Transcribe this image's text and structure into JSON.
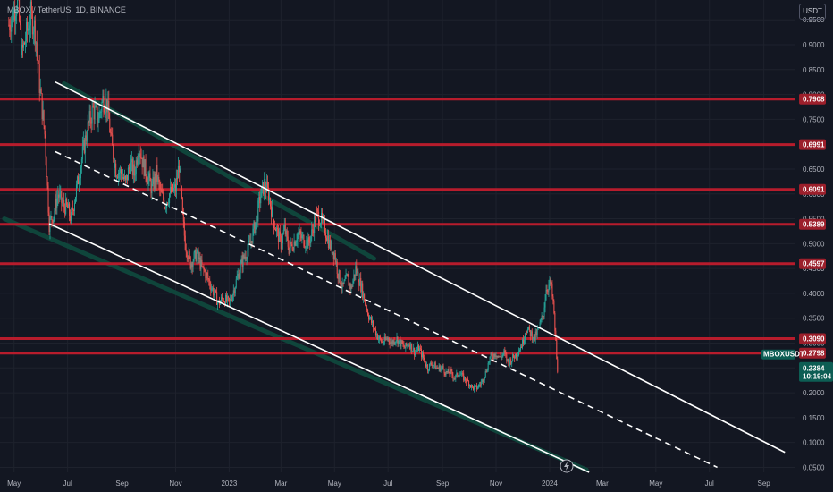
{
  "header": {
    "symbol_title": "MBOX / TetherUS, 1D, BINANCE",
    "currency": "USDT"
  },
  "colors": {
    "background": "#131722",
    "up": "#26a69a",
    "down": "#ef5350",
    "level_line": "#b71c2c",
    "level_label_bg": "#9c1f2b",
    "channel": "#ffffff",
    "channel_shadow": "#0f4a3e",
    "current_price_bg": "#0d5e54"
  },
  "chart_data": {
    "type": "candlestick",
    "title": "MBOX / TetherUS, 1D, BINANCE",
    "y_axis": {
      "ticks": [
        0.05,
        0.1,
        0.15,
        0.2,
        0.25,
        0.3,
        0.35,
        0.4,
        0.45,
        0.5,
        0.55,
        0.6,
        0.65,
        0.7,
        0.75,
        0.8,
        0.85,
        0.9,
        0.95
      ],
      "tick_labels": [
        "0.0500",
        "0.1000",
        "0.1500",
        "0.2000",
        "0.2500",
        "0.3000",
        "0.3500",
        "0.4000",
        "0.4500",
        "0.5000",
        "0.5500",
        "0.6000",
        "0.6500",
        "0.7000",
        "0.7500",
        "0.8000",
        "0.8500",
        "0.9000",
        "0.9500"
      ],
      "range": [
        0.04,
        0.99
      ],
      "position": "right"
    },
    "x_axis": {
      "labels": [
        "May",
        "Jul",
        "Sep",
        "Nov",
        "2023",
        "Mar",
        "May",
        "Jul",
        "Sep",
        "Nov",
        "2024",
        "Mar",
        "May",
        "Jul",
        "Sep"
      ],
      "dates": [
        "2022-05-01",
        "2022-07-01",
        "2022-09-01",
        "2022-11-01",
        "2023-01-01",
        "2023-03-01",
        "2023-05-01",
        "2023-07-01",
        "2023-09-01",
        "2023-11-01",
        "2024-01-01",
        "2024-03-01",
        "2024-05-01",
        "2024-07-01",
        "2024-09-01"
      ],
      "range": [
        "2022-04-15",
        "2024-10-07"
      ]
    },
    "horizontal_levels": [
      {
        "value": 0.7908,
        "label": "0.7908"
      },
      {
        "value": 0.6991,
        "label": "0.6991"
      },
      {
        "value": 0.6091,
        "label": "0.6091"
      },
      {
        "value": 0.5389,
        "label": "0.5389"
      },
      {
        "value": 0.4597,
        "label": "0.4597"
      },
      {
        "value": 0.309,
        "label": "0.3090"
      },
      {
        "value": 0.2798,
        "label": "0.2798"
      }
    ],
    "current_price": {
      "symbol": "MBOXUSDT",
      "value": "0.2384",
      "countdown": "10:19:04",
      "y": 0.2384
    },
    "channel_lines": [
      {
        "kind": "upper",
        "style": "solid",
        "start": {
          "date": "2022-06-17",
          "price": 0.825
        },
        "end": {
          "date": "2024-09-25",
          "price": 0.08
        }
      },
      {
        "kind": "middle",
        "style": "dashed",
        "start": {
          "date": "2022-06-17",
          "price": 0.685
        },
        "end": {
          "date": "2024-07-10",
          "price": 0.05
        }
      },
      {
        "kind": "lower",
        "style": "solid",
        "start": {
          "date": "2022-06-10",
          "price": 0.54
        },
        "end": {
          "date": "2024-02-15",
          "price": 0.04
        }
      }
    ],
    "channel_shadows": [
      {
        "start": {
          "date": "2022-06-27",
          "price": 0.822
        },
        "end": {
          "date": "2023-06-15",
          "price": 0.47
        }
      },
      {
        "start": {
          "date": "2022-04-20",
          "price": 0.55
        },
        "end": {
          "date": "2024-02-12",
          "price": 0.045
        }
      }
    ],
    "price_path": [
      [
        "2022-04-25",
        0.94
      ],
      [
        "2022-05-05",
        0.99
      ],
      [
        "2022-05-10",
        0.88
      ],
      [
        "2022-05-20",
        0.96
      ],
      [
        "2022-05-25",
        0.93
      ],
      [
        "2022-05-30",
        0.82
      ],
      [
        "2022-06-05",
        0.72
      ],
      [
        "2022-06-10",
        0.54
      ],
      [
        "2022-06-15",
        0.56
      ],
      [
        "2022-06-20",
        0.6
      ],
      [
        "2022-06-25",
        0.58
      ],
      [
        "2022-07-01",
        0.57
      ],
      [
        "2022-07-05",
        0.55
      ],
      [
        "2022-07-10",
        0.6
      ],
      [
        "2022-07-15",
        0.65
      ],
      [
        "2022-07-20",
        0.7
      ],
      [
        "2022-07-25",
        0.74
      ],
      [
        "2022-07-30",
        0.77
      ],
      [
        "2022-08-05",
        0.75
      ],
      [
        "2022-08-10",
        0.79
      ],
      [
        "2022-08-15",
        0.78
      ],
      [
        "2022-08-20",
        0.7
      ],
      [
        "2022-08-25",
        0.65
      ],
      [
        "2022-09-01",
        0.64
      ],
      [
        "2022-09-05",
        0.62
      ],
      [
        "2022-09-10",
        0.66
      ],
      [
        "2022-09-15",
        0.64
      ],
      [
        "2022-09-20",
        0.7
      ],
      [
        "2022-09-25",
        0.66
      ],
      [
        "2022-10-01",
        0.63
      ],
      [
        "2022-10-05",
        0.61
      ],
      [
        "2022-10-10",
        0.64
      ],
      [
        "2022-10-15",
        0.6
      ],
      [
        "2022-10-20",
        0.58
      ],
      [
        "2022-10-25",
        0.6
      ],
      [
        "2022-11-01",
        0.61
      ],
      [
        "2022-11-05",
        0.66
      ],
      [
        "2022-11-09",
        0.55
      ],
      [
        "2022-11-12",
        0.5
      ],
      [
        "2022-11-18",
        0.46
      ],
      [
        "2022-11-25",
        0.48
      ],
      [
        "2022-12-01",
        0.45
      ],
      [
        "2022-12-05",
        0.44
      ],
      [
        "2022-12-10",
        0.42
      ],
      [
        "2022-12-15",
        0.4
      ],
      [
        "2022-12-20",
        0.38
      ],
      [
        "2022-12-25",
        0.39
      ],
      [
        "2023-01-01",
        0.38
      ],
      [
        "2023-01-05",
        0.4
      ],
      [
        "2023-01-10",
        0.43
      ],
      [
        "2023-01-15",
        0.46
      ],
      [
        "2023-01-20",
        0.48
      ],
      [
        "2023-01-25",
        0.5
      ],
      [
        "2023-02-01",
        0.55
      ],
      [
        "2023-02-05",
        0.59
      ],
      [
        "2023-02-10",
        0.62
      ],
      [
        "2023-02-15",
        0.6
      ],
      [
        "2023-02-20",
        0.55
      ],
      [
        "2023-02-25",
        0.52
      ],
      [
        "2023-03-01",
        0.5
      ],
      [
        "2023-03-05",
        0.53
      ],
      [
        "2023-03-10",
        0.49
      ],
      [
        "2023-03-15",
        0.5
      ],
      [
        "2023-03-20",
        0.52
      ],
      [
        "2023-03-25",
        0.51
      ],
      [
        "2023-04-01",
        0.5
      ],
      [
        "2023-04-05",
        0.52
      ],
      [
        "2023-04-10",
        0.56
      ],
      [
        "2023-04-15",
        0.55
      ],
      [
        "2023-04-20",
        0.53
      ],
      [
        "2023-04-25",
        0.5
      ],
      [
        "2023-05-01",
        0.48
      ],
      [
        "2023-05-05",
        0.44
      ],
      [
        "2023-05-10",
        0.41
      ],
      [
        "2023-05-15",
        0.43
      ],
      [
        "2023-05-20",
        0.41
      ],
      [
        "2023-05-25",
        0.45
      ],
      [
        "2023-06-01",
        0.41
      ],
      [
        "2023-06-05",
        0.38
      ],
      [
        "2023-06-10",
        0.35
      ],
      [
        "2023-06-15",
        0.33
      ],
      [
        "2023-06-20",
        0.31
      ],
      [
        "2023-06-25",
        0.3
      ],
      [
        "2023-07-01",
        0.31
      ],
      [
        "2023-07-05",
        0.3
      ],
      [
        "2023-07-10",
        0.31
      ],
      [
        "2023-07-15",
        0.3
      ],
      [
        "2023-07-20",
        0.29
      ],
      [
        "2023-07-25",
        0.3
      ],
      [
        "2023-08-01",
        0.28
      ],
      [
        "2023-08-05",
        0.29
      ],
      [
        "2023-08-10",
        0.27
      ],
      [
        "2023-08-15",
        0.25
      ],
      [
        "2023-08-20",
        0.26
      ],
      [
        "2023-08-25",
        0.25
      ],
      [
        "2023-09-01",
        0.25
      ],
      [
        "2023-09-05",
        0.24
      ],
      [
        "2023-09-10",
        0.24
      ],
      [
        "2023-09-15",
        0.23
      ],
      [
        "2023-09-20",
        0.24
      ],
      [
        "2023-09-25",
        0.23
      ],
      [
        "2023-10-01",
        0.22
      ],
      [
        "2023-10-05",
        0.21
      ],
      [
        "2023-10-10",
        0.21
      ],
      [
        "2023-10-15",
        0.22
      ],
      [
        "2023-10-20",
        0.24
      ],
      [
        "2023-10-25",
        0.27
      ],
      [
        "2023-11-01",
        0.28
      ],
      [
        "2023-11-05",
        0.27
      ],
      [
        "2023-11-10",
        0.28
      ],
      [
        "2023-11-15",
        0.26
      ],
      [
        "2023-11-20",
        0.27
      ],
      [
        "2023-11-25",
        0.28
      ],
      [
        "2023-12-01",
        0.3
      ],
      [
        "2023-12-05",
        0.33
      ],
      [
        "2023-12-10",
        0.32
      ],
      [
        "2023-12-15",
        0.31
      ],
      [
        "2023-12-20",
        0.33
      ],
      [
        "2023-12-25",
        0.36
      ],
      [
        "2023-12-28",
        0.41
      ],
      [
        "2024-01-02",
        0.42
      ],
      [
        "2024-01-05",
        0.38
      ],
      [
        "2024-01-08",
        0.3
      ],
      [
        "2024-01-10",
        0.2384
      ]
    ]
  }
}
